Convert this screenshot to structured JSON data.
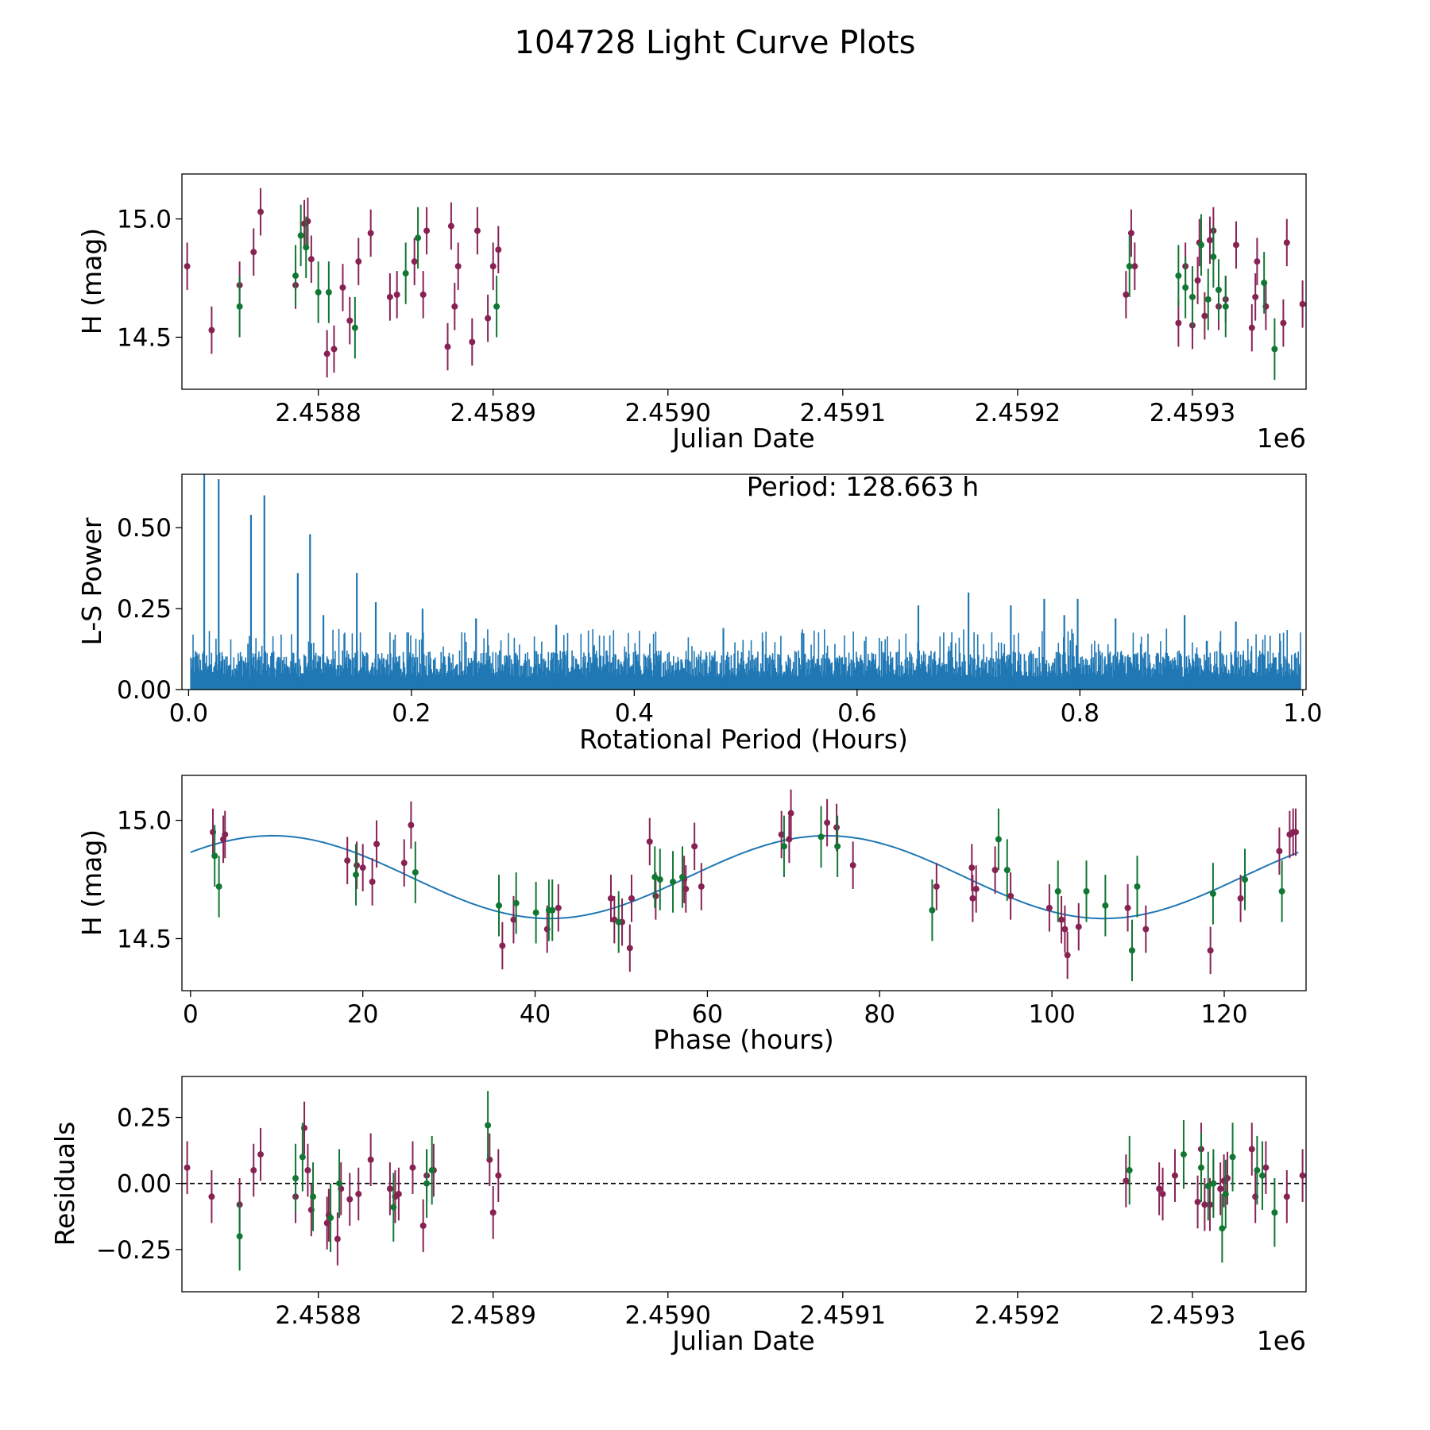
{
  "figure": {
    "title": "104728 Light Curve Plots"
  },
  "colors": {
    "series_a": "#882255",
    "series_b": "#117733",
    "model": "#1f77b4",
    "periodogram": "#1f77b4",
    "zero_line": "#000000"
  },
  "chart_data": [
    {
      "id": "lightcurve",
      "type": "scatter",
      "title": "",
      "xlabel": "Julian Date",
      "ylabel": "H (mag)",
      "x_offset_label": "1e6",
      "xlim": [
        2458722,
        2459365
      ],
      "ylim": [
        14.28,
        15.19
      ],
      "x_ticks": [
        2458800,
        2458900,
        2459000,
        2459100,
        2459200,
        2459300
      ],
      "x_tick_labels": [
        "2.4588",
        "2.4589",
        "2.4590",
        "2.4591",
        "2.4592",
        "2.4593"
      ],
      "y_ticks": [
        14.5,
        15.0
      ],
      "y_tick_labels": [
        "14.5",
        "15.0"
      ],
      "error_bars": true,
      "series": [
        {
          "name": "band-1",
          "color": "#882255",
          "err": 0.1,
          "x": [
            2458725,
            2458739,
            2458755,
            2458763,
            2458767,
            2458787,
            2458792,
            2458794,
            2458796,
            2458805,
            2458809,
            2458814,
            2458818,
            2458823,
            2458830,
            2458841,
            2458845,
            2458855,
            2458860,
            2458862,
            2458874,
            2458876,
            2458878,
            2458880,
            2458888,
            2458891,
            2458897,
            2458900,
            2458903,
            2459262,
            2459265,
            2459267,
            2459292,
            2459296,
            2459300,
            2459303,
            2459304,
            2459307,
            2459310,
            2459312,
            2459315,
            2459319,
            2459325,
            2459334,
            2459336,
            2459337,
            2459342,
            2459352,
            2459354,
            2459363
          ],
          "y": [
            14.8,
            14.53,
            14.72,
            14.86,
            15.03,
            14.72,
            14.98,
            14.99,
            14.83,
            14.43,
            14.45,
            14.71,
            14.57,
            14.82,
            14.94,
            14.67,
            14.68,
            14.82,
            14.68,
            14.95,
            14.46,
            14.97,
            14.63,
            14.8,
            14.48,
            14.95,
            14.58,
            14.8,
            14.87,
            14.68,
            14.94,
            14.8,
            14.56,
            14.8,
            14.55,
            14.74,
            14.9,
            14.59,
            14.91,
            14.95,
            14.63,
            14.66,
            14.89,
            14.54,
            14.67,
            14.82,
            14.63,
            14.56,
            14.9,
            14.64
          ]
        },
        {
          "name": "band-2",
          "color": "#117733",
          "err": 0.13,
          "x": [
            2458755,
            2458787,
            2458790,
            2458793,
            2458800,
            2458806,
            2458821,
            2458850,
            2458857,
            2458902,
            2459264,
            2459292,
            2459296,
            2459300,
            2459305,
            2459309,
            2459312,
            2459315,
            2459319,
            2459341,
            2459347
          ],
          "y": [
            14.63,
            14.76,
            14.93,
            14.88,
            14.69,
            14.69,
            14.54,
            14.77,
            14.92,
            14.63,
            14.8,
            14.76,
            14.71,
            14.67,
            14.89,
            14.66,
            14.84,
            14.7,
            14.63,
            14.73,
            14.45
          ]
        }
      ]
    },
    {
      "id": "periodogram",
      "type": "line",
      "title": "",
      "xlabel": "Rotational Period (Hours)",
      "ylabel": "L-S Power",
      "annotation": "Period: 128.663 h",
      "xlim": [
        -0.006,
        1.003
      ],
      "ylim": [
        0,
        0.665
      ],
      "x_ticks": [
        0.0,
        0.2,
        0.4,
        0.6,
        0.8,
        1.0
      ],
      "x_tick_labels": [
        "0.0",
        "0.2",
        "0.4",
        "0.6",
        "0.8",
        "1.0"
      ],
      "y_ticks": [
        0.0,
        0.25,
        0.5
      ],
      "y_tick_labels": [
        "0.00",
        "0.25",
        "0.50"
      ],
      "noise_floor": 0.13,
      "peaks": {
        "x": [
          0.014,
          0.027,
          0.056,
          0.068,
          0.098,
          0.109,
          0.121,
          0.151,
          0.168,
          0.21,
          0.258,
          0.33,
          0.48,
          0.655,
          0.7,
          0.738,
          0.768,
          0.786,
          0.798,
          0.832,
          0.894,
          0.94
        ],
        "y": [
          0.665,
          0.65,
          0.54,
          0.6,
          0.36,
          0.48,
          0.23,
          0.36,
          0.27,
          0.25,
          0.22,
          0.2,
          0.19,
          0.26,
          0.3,
          0.26,
          0.28,
          0.23,
          0.28,
          0.22,
          0.23,
          0.21
        ]
      }
    },
    {
      "id": "phased",
      "type": "scatter",
      "title": "",
      "xlabel": "Phase (hours)",
      "ylabel": "H (mag)",
      "xlim": [
        -1,
        129.5
      ],
      "ylim": [
        14.28,
        15.19
      ],
      "x_ticks": [
        0,
        20,
        40,
        60,
        80,
        100,
        120
      ],
      "x_tick_labels": [
        "0",
        "20",
        "40",
        "60",
        "80",
        "100",
        "120"
      ],
      "y_ticks": [
        14.5,
        15.0
      ],
      "y_tick_labels": [
        "14.5",
        "15.0"
      ],
      "error_bars": true,
      "model": {
        "type": "sinusoid",
        "mean": 14.76,
        "amplitude": 0.175,
        "period_h": 64.33,
        "peak_at_h": 9.5
      },
      "series": [
        {
          "name": "band-1",
          "color": "#882255",
          "err": 0.1,
          "x": [
            2.6,
            3.8,
            4.0,
            18.2,
            19.3,
            20.0,
            21.1,
            21.6,
            24.8,
            25.6,
            36.2,
            37.5,
            41.4,
            42.7,
            48.8,
            49.2,
            50.1,
            51.0,
            51.2,
            53.3,
            54.0,
            57.3,
            57.5,
            58.5,
            59.3,
            68.6,
            69.5,
            69.7,
            73.9,
            75.0,
            76.9,
            86.6,
            90.7,
            90.8,
            91.2,
            93.4,
            95.2,
            99.7,
            101.1,
            101.5,
            101.8,
            103.1,
            108.8,
            110.9,
            118.4,
            121.9,
            126.4,
            127.6,
            128.0,
            128.3
          ],
          "y": [
            14.95,
            14.92,
            14.94,
            14.83,
            14.81,
            14.8,
            14.74,
            14.9,
            14.82,
            14.98,
            14.47,
            14.58,
            14.54,
            14.63,
            14.67,
            14.58,
            14.57,
            14.46,
            14.67,
            14.91,
            14.68,
            14.75,
            14.71,
            14.89,
            14.72,
            14.94,
            14.92,
            15.03,
            14.99,
            14.97,
            14.81,
            14.72,
            14.8,
            14.67,
            14.71,
            14.79,
            14.68,
            14.63,
            14.58,
            14.54,
            14.43,
            14.55,
            14.63,
            14.54,
            14.45,
            14.67,
            14.87,
            14.94,
            14.95,
            14.95
          ]
        },
        {
          "name": "band-2",
          "color": "#117733",
          "err": 0.13,
          "x": [
            2.8,
            3.3,
            19.2,
            26.1,
            35.8,
            37.8,
            40.1,
            41.6,
            42.0,
            49.7,
            53.9,
            54.5,
            56.0,
            57.1,
            68.9,
            73.2,
            75.1,
            86.1,
            93.8,
            94.8,
            100.7,
            104.0,
            106.2,
            109.3,
            109.9,
            118.7,
            122.4,
            126.7
          ],
          "y": [
            14.85,
            14.72,
            14.77,
            14.78,
            14.64,
            14.65,
            14.61,
            14.62,
            14.62,
            14.57,
            14.76,
            14.75,
            14.74,
            14.76,
            14.89,
            14.93,
            14.89,
            14.62,
            14.92,
            14.79,
            14.7,
            14.7,
            14.64,
            14.45,
            14.72,
            14.69,
            14.75,
            14.7
          ]
        }
      ]
    },
    {
      "id": "residuals",
      "type": "scatter",
      "title": "",
      "xlabel": "Julian Date",
      "ylabel": "Residuals",
      "x_offset_label": "1e6",
      "xlim": [
        2458722,
        2459365
      ],
      "ylim": [
        -0.41,
        0.405
      ],
      "x_ticks": [
        2458800,
        2458900,
        2459000,
        2459100,
        2459200,
        2459300
      ],
      "x_tick_labels": [
        "2.4588",
        "2.4589",
        "2.4590",
        "2.4591",
        "2.4592",
        "2.4593"
      ],
      "y_ticks": [
        -0.25,
        0.0,
        0.25
      ],
      "y_tick_labels": [
        "−0.25",
        "0.00",
        "0.25"
      ],
      "error_bars": true,
      "zero_line": 0.0,
      "series": [
        {
          "name": "band-1",
          "color": "#882255",
          "err": 0.1,
          "x": [
            2458725,
            2458739,
            2458755,
            2458763,
            2458767,
            2458787,
            2458792,
            2458794,
            2458796,
            2458805,
            2458806,
            2458811,
            2458813,
            2458818,
            2458823,
            2458830,
            2458841,
            2458844,
            2458846,
            2458854,
            2458860,
            2458862,
            2458866,
            2458898,
            2458900,
            2458903,
            2459262,
            2459281,
            2459283,
            2459290,
            2459303,
            2459305,
            2459307,
            2459310,
            2459312,
            2459316,
            2459318,
            2459320,
            2459334,
            2459336,
            2459342,
            2459354,
            2459363
          ],
          "y": [
            0.06,
            -0.05,
            -0.08,
            0.05,
            0.11,
            -0.05,
            0.21,
            0.05,
            -0.1,
            -0.15,
            -0.12,
            -0.21,
            -0.02,
            -0.06,
            -0.04,
            0.09,
            -0.02,
            -0.05,
            -0.04,
            0.06,
            -0.16,
            0.03,
            0.05,
            0.09,
            -0.11,
            0.03,
            0.01,
            -0.02,
            -0.04,
            0.03,
            -0.07,
            0.13,
            -0.08,
            -0.08,
            0.0,
            -0.02,
            0.01,
            0.02,
            0.13,
            -0.05,
            0.06,
            -0.05,
            0.03
          ]
        },
        {
          "name": "band-2",
          "color": "#117733",
          "err": 0.13,
          "x": [
            2458755,
            2458787,
            2458791,
            2458797,
            2458807,
            2458812,
            2458843,
            2458862,
            2458865,
            2458897,
            2459264,
            2459295,
            2459305,
            2459309,
            2459312,
            2459317,
            2459319,
            2459323,
            2459337,
            2459340,
            2459347
          ],
          "y": [
            -0.2,
            0.02,
            0.1,
            -0.05,
            -0.13,
            0.0,
            -0.09,
            0.0,
            0.05,
            0.22,
            0.05,
            0.11,
            0.06,
            -0.01,
            0.0,
            -0.17,
            -0.04,
            0.1,
            0.05,
            0.03,
            -0.11
          ]
        }
      ]
    }
  ]
}
